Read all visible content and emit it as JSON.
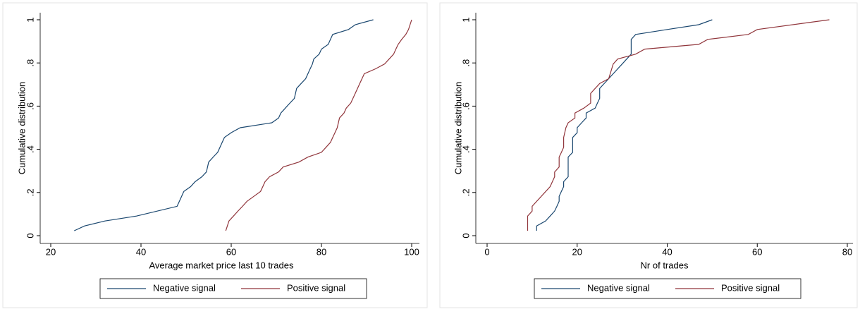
{
  "chart_data": [
    {
      "type": "line",
      "x_label": "Average market price last 10 trades",
      "y_label": "Cumulative distribution",
      "xlim": [
        20,
        100
      ],
      "xticks": [
        20,
        40,
        60,
        80,
        100
      ],
      "ylim": [
        0,
        1
      ],
      "yticks": [
        0,
        {
          "value": 0.2,
          "label": ".2"
        },
        {
          "value": 0.4,
          "label": ".4"
        },
        {
          "value": 0.6,
          "label": ".6"
        },
        {
          "value": 0.8,
          "label": ".8"
        },
        1
      ],
      "series": [
        {
          "name": "Negative signal",
          "color": "#1a476f",
          "x": [
            25.2,
            27.5,
            32,
            39,
            48,
            49.5,
            51,
            52,
            53.5,
            54.5,
            55,
            56,
            57,
            58,
            58.5,
            60,
            62,
            69,
            70.5,
            71,
            72,
            73,
            74,
            74.5,
            75.5,
            76.5,
            77.5,
            78,
            78.3,
            79.5,
            80,
            81.5,
            82,
            82.5,
            86,
            87.5,
            91.5
          ],
          "values": [
            0.023,
            0.045,
            0.068,
            0.091,
            0.136,
            0.205,
            0.227,
            0.25,
            0.273,
            0.295,
            0.341,
            0.364,
            0.386,
            0.432,
            0.455,
            0.477,
            0.5,
            0.523,
            0.545,
            0.568,
            0.591,
            0.614,
            0.636,
            0.682,
            0.705,
            0.727,
            0.773,
            0.795,
            0.818,
            0.841,
            0.864,
            0.886,
            0.909,
            0.932,
            0.955,
            0.977,
            1
          ]
        },
        {
          "name": "Positive signal",
          "color": "#90353b",
          "x": [
            58.8,
            59.5,
            60.5,
            61.5,
            62.5,
            63.5,
            65,
            66.5,
            67,
            67.5,
            68.5,
            70.5,
            71.5,
            75,
            77,
            80,
            81,
            82,
            82.5,
            83,
            83.5,
            84,
            85,
            85.5,
            86.5,
            87.5,
            88,
            88.5,
            89.5,
            92,
            94,
            95,
            96,
            96.5,
            97,
            97.8,
            98.7,
            99.3,
            100
          ],
          "values": [
            0.023,
            0.068,
            0.091,
            0.114,
            0.136,
            0.159,
            0.182,
            0.205,
            0.227,
            0.25,
            0.273,
            0.295,
            0.318,
            0.341,
            0.364,
            0.386,
            0.409,
            0.432,
            0.455,
            0.477,
            0.5,
            0.545,
            0.568,
            0.591,
            0.614,
            0.659,
            0.682,
            0.705,
            0.75,
            0.773,
            0.795,
            0.818,
            0.841,
            0.864,
            0.886,
            0.909,
            0.932,
            0.955,
            1
          ]
        }
      ]
    },
    {
      "type": "line",
      "x_label": "Nr of trades",
      "y_label": "Cumulative distribution",
      "xlim": [
        0,
        80
      ],
      "xticks": [
        0,
        20,
        40,
        60,
        80
      ],
      "ylim": [
        0,
        1
      ],
      "yticks": [
        0,
        {
          "value": 0.2,
          "label": ".2"
        },
        {
          "value": 0.4,
          "label": ".4"
        },
        {
          "value": 0.6,
          "label": ".6"
        },
        {
          "value": 0.8,
          "label": ".8"
        },
        1
      ],
      "series": [
        {
          "name": "Negative signal",
          "color": "#1a476f",
          "x": [
            11,
            11,
            13,
            14,
            15,
            15.5,
            16,
            16,
            16.5,
            17,
            17,
            18,
            18,
            18,
            19,
            19,
            19,
            20,
            20,
            21,
            22,
            22,
            24,
            24.5,
            25,
            25,
            28,
            30,
            31,
            32,
            32,
            33,
            40,
            47,
            50
          ],
          "values": [
            0.023,
            0.045,
            0.068,
            0.091,
            0.114,
            0.136,
            0.159,
            0.182,
            0.205,
            0.227,
            0.25,
            0.273,
            0.318,
            0.364,
            0.386,
            0.432,
            0.455,
            0.477,
            0.5,
            0.523,
            0.545,
            0.568,
            0.591,
            0.614,
            0.636,
            0.682,
            0.75,
            0.795,
            0.818,
            0.841,
            0.909,
            0.932,
            0.955,
            0.977,
            1
          ]
        },
        {
          "name": "Positive signal",
          "color": "#90353b",
          "x": [
            9,
            9,
            10,
            10,
            14,
            14.5,
            15,
            15,
            16,
            16,
            16.5,
            17,
            17,
            17.5,
            18,
            19.5,
            19.5,
            21.5,
            23,
            23,
            25,
            27,
            28,
            29,
            33,
            35,
            47,
            49,
            58,
            60,
            76
          ],
          "values": [
            0.023,
            0.091,
            0.114,
            0.136,
            0.227,
            0.25,
            0.273,
            0.295,
            0.318,
            0.364,
            0.386,
            0.409,
            0.455,
            0.5,
            0.523,
            0.545,
            0.568,
            0.591,
            0.614,
            0.659,
            0.705,
            0.727,
            0.795,
            0.818,
            0.841,
            0.864,
            0.886,
            0.909,
            0.932,
            0.955,
            1
          ]
        }
      ]
    }
  ]
}
